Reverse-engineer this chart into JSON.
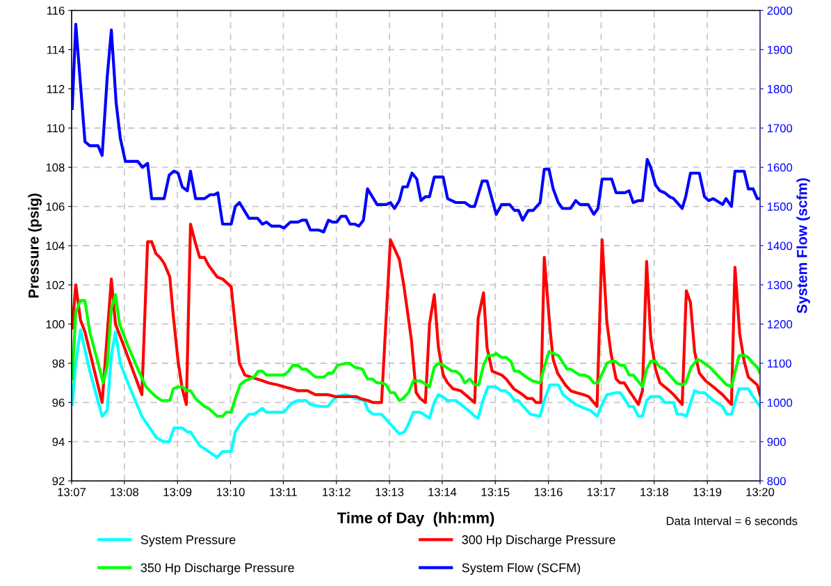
{
  "chart_data": {
    "type": "line",
    "xlabel": "Time of Day  (hh:mm)",
    "ylabel": "Pressure (psig)",
    "y2label": "System Flow (scfm)",
    "xlim": [
      13.1167,
      13.3333
    ],
    "xticks": [
      {
        "value": 13.1167,
        "label": "13:07"
      },
      {
        "value": 13.1333,
        "label": "13:08"
      },
      {
        "value": 13.15,
        "label": "13:09"
      },
      {
        "value": 13.1667,
        "label": "13:10"
      },
      {
        "value": 13.1833,
        "label": "13:11"
      },
      {
        "value": 13.2,
        "label": "13:12"
      },
      {
        "value": 13.2167,
        "label": "13:13"
      },
      {
        "value": 13.2333,
        "label": "13:14"
      },
      {
        "value": 13.25,
        "label": "13:15"
      },
      {
        "value": 13.2667,
        "label": "13:16"
      },
      {
        "value": 13.2833,
        "label": "13:17"
      },
      {
        "value": 13.3,
        "label": "13:18"
      },
      {
        "value": 13.3167,
        "label": "13:19"
      },
      {
        "value": 13.3333,
        "label": "13:20"
      }
    ],
    "ylim": [
      92,
      116
    ],
    "yticks": [
      92,
      94,
      96,
      98,
      100,
      102,
      104,
      106,
      108,
      110,
      112,
      114,
      116
    ],
    "y2lim": [
      800,
      2000
    ],
    "y2ticks": [
      800,
      900,
      1000,
      1100,
      1200,
      1300,
      1400,
      1500,
      1600,
      1700,
      1800,
      1900,
      2000
    ],
    "grid": true,
    "legend": "bottom",
    "marker": "none",
    "line_style": "solid",
    "annotations": [
      "Data Interval = 6 seconds"
    ],
    "series": [
      {
        "name": "System Pressure",
        "color": "#00ffff",
        "x": [
          13.1169,
          13.118,
          13.1195,
          13.1224,
          13.1263,
          13.1279,
          13.1292,
          13.1305,
          13.132,
          13.1349,
          13.1388,
          13.1434,
          13.1456,
          13.1474,
          13.1489,
          13.1515,
          13.1531,
          13.1541,
          13.157,
          13.1598,
          13.1625,
          13.1642,
          13.1669,
          13.1682,
          13.1697,
          13.1725,
          13.1741,
          13.1767,
          13.178,
          13.1822,
          13.1835,
          13.185,
          13.1863,
          13.1879,
          13.1905,
          13.1918,
          13.1949,
          13.1973,
          13.1988,
          13.2001,
          13.203,
          13.2063,
          13.2087,
          13.21,
          13.2115,
          13.2142,
          13.217,
          13.2198,
          13.2214,
          13.2227,
          13.2242,
          13.2264,
          13.2293,
          13.2308,
          13.2321,
          13.2334,
          13.235,
          13.2376,
          13.2391,
          13.2415,
          13.2435,
          13.2446,
          13.2461,
          13.2477,
          13.2501,
          13.2518,
          13.2531,
          13.2547,
          13.256,
          13.2573,
          13.2588,
          13.261,
          13.2641,
          13.2654,
          13.2672,
          13.2698,
          13.2713,
          13.2737,
          13.2753,
          13.2781,
          13.2799,
          13.282,
          13.2836,
          13.2851,
          13.288,
          13.2893,
          13.2906,
          13.2921,
          13.2934,
          13.295,
          13.2963,
          13.2976,
          13.2989,
          13.3018,
          13.3033,
          13.3061,
          13.3072,
          13.3088,
          13.3101,
          13.3127,
          13.3142,
          13.3158,
          13.3186,
          13.3215,
          13.3228,
          13.3243,
          13.3267,
          13.3296,
          13.3311,
          13.3333
        ],
        "values": [
          95.9,
          98.0,
          99.7,
          97.6,
          95.3,
          95.6,
          98.4,
          99.6,
          98.0,
          96.8,
          95.3,
          94.2,
          94.0,
          94.0,
          94.7,
          94.7,
          94.5,
          94.5,
          93.8,
          93.5,
          93.2,
          93.5,
          93.5,
          94.5,
          94.9,
          95.4,
          95.4,
          95.7,
          95.5,
          95.5,
          95.5,
          95.8,
          96.0,
          96.1,
          96.1,
          95.9,
          95.8,
          95.8,
          96.1,
          96.3,
          96.4,
          96.2,
          96.1,
          95.6,
          95.4,
          95.4,
          94.9,
          94.4,
          94.5,
          94.9,
          95.5,
          95.5,
          95.2,
          96.0,
          96.4,
          96.3,
          96.1,
          96.1,
          95.9,
          95.6,
          95.3,
          95.2,
          96.1,
          96.8,
          96.8,
          96.6,
          96.6,
          96.4,
          96.1,
          96.1,
          95.8,
          95.4,
          95.3,
          96.1,
          96.9,
          96.9,
          96.4,
          96.1,
          95.9,
          95.7,
          95.6,
          95.3,
          95.9,
          96.4,
          96.5,
          96.5,
          96.2,
          95.8,
          95.8,
          95.3,
          95.3,
          96.1,
          96.3,
          96.3,
          96.0,
          96.0,
          95.4,
          95.4,
          95.3,
          96.6,
          96.5,
          96.5,
          96.1,
          95.8,
          95.4,
          95.4,
          96.7,
          96.7,
          96.3,
          95.8
        ]
      },
      {
        "name": "300 Hp Discharge Pressure",
        "color": "#ff0000",
        "x": [
          13.1169,
          13.118,
          13.1195,
          13.1209,
          13.1263,
          13.1292,
          13.1305,
          13.1331,
          13.1388,
          13.1406,
          13.1419,
          13.1432,
          13.1445,
          13.1458,
          13.1476,
          13.1487,
          13.1502,
          13.1515,
          13.1528,
          13.1541,
          13.1557,
          13.157,
          13.1585,
          13.1598,
          13.1625,
          13.1642,
          13.1669,
          13.1682,
          13.1695,
          13.1712,
          13.173,
          13.175,
          13.1769,
          13.1787,
          13.1815,
          13.1835,
          13.1859,
          13.1879,
          13.1909,
          13.1934,
          13.1973,
          13.1997,
          13.2063,
          13.2076,
          13.21,
          13.2115,
          13.2142,
          13.217,
          13.2198,
          13.2212,
          13.2236,
          13.2251,
          13.2264,
          13.228,
          13.2293,
          13.2308,
          13.2321,
          13.2336,
          13.235,
          13.2367,
          13.2391,
          13.2435,
          13.2446,
          13.2463,
          13.2474,
          13.249,
          13.2505,
          13.252,
          13.2534,
          13.2558,
          13.2586,
          13.2601,
          13.2617,
          13.2628,
          13.2643,
          13.2654,
          13.2661,
          13.2672,
          13.2682,
          13.2696,
          13.272,
          13.2737,
          13.2755,
          13.2777,
          13.2794,
          13.282,
          13.2836,
          13.2851,
          13.2864,
          13.288,
          13.2893,
          13.2906,
          13.2921,
          13.2934,
          13.295,
          13.2963,
          13.2976,
          13.2989,
          13.3004,
          13.3018,
          13.3033,
          13.3048,
          13.3061,
          13.3088,
          13.3101,
          13.3114,
          13.3127,
          13.3142,
          13.3162,
          13.3186,
          13.3215,
          13.3243,
          13.3254,
          13.3269,
          13.3283,
          13.3296,
          13.3324,
          13.3333
        ],
        "values": [
          99.8,
          102.0,
          100.2,
          99.6,
          96.0,
          102.3,
          100.0,
          98.9,
          96.4,
          104.2,
          104.2,
          103.6,
          103.4,
          103.1,
          102.4,
          100.4,
          98.1,
          96.7,
          95.9,
          105.1,
          104.1,
          103.4,
          103.4,
          103.0,
          102.4,
          102.3,
          101.9,
          99.9,
          98.0,
          97.4,
          97.3,
          97.2,
          97.1,
          97.0,
          96.9,
          96.8,
          96.7,
          96.6,
          96.6,
          96.4,
          96.4,
          96.3,
          96.3,
          96.2,
          96.1,
          96.0,
          96.0,
          104.3,
          103.3,
          102.0,
          99.2,
          96.5,
          96.2,
          96.0,
          100.0,
          101.5,
          98.8,
          97.4,
          97.0,
          96.7,
          96.6,
          96.0,
          100.3,
          101.6,
          98.8,
          97.6,
          97.5,
          97.4,
          97.2,
          96.7,
          96.4,
          96.2,
          96.2,
          96.0,
          96.0,
          103.4,
          102.0,
          99.8,
          98.2,
          97.5,
          96.9,
          96.6,
          96.5,
          96.4,
          96.3,
          95.8,
          104.3,
          100.1,
          98.5,
          97.2,
          97.0,
          97.0,
          96.6,
          96.3,
          95.9,
          96.6,
          103.2,
          99.3,
          97.7,
          97.0,
          96.8,
          96.6,
          96.4,
          95.9,
          101.7,
          101.1,
          98.6,
          97.5,
          97.1,
          96.8,
          96.4,
          95.9,
          102.9,
          99.5,
          98.1,
          97.3,
          96.9,
          96.4
        ]
      },
      {
        "name": "350 Hp Discharge Pressure",
        "color": "#00ff00",
        "x": [
          13.1169,
          13.118,
          13.1195,
          13.1209,
          13.1224,
          13.1252,
          13.1266,
          13.1279,
          13.1292,
          13.1305,
          13.1318,
          13.1344,
          13.1373,
          13.1401,
          13.1419,
          13.1432,
          13.145,
          13.1476,
          13.1487,
          13.1502,
          13.1515,
          13.1531,
          13.1541,
          13.1557,
          13.1585,
          13.1598,
          13.1625,
          13.1642,
          13.1653,
          13.1669,
          13.1682,
          13.1697,
          13.1712,
          13.1741,
          13.1754,
          13.1767,
          13.178,
          13.1822,
          13.1835,
          13.185,
          13.1863,
          13.1879,
          13.1892,
          13.1905,
          13.1934,
          13.1962,
          13.1975,
          13.1988,
          13.2004,
          13.203,
          13.2041,
          13.2058,
          13.2082,
          13.2098,
          13.2113,
          13.2128,
          13.2144,
          13.2157,
          13.217,
          13.2183,
          13.2198,
          13.2209,
          13.2227,
          13.2242,
          13.2264,
          13.2293,
          13.2308,
          13.2321,
          13.2336,
          13.2363,
          13.2376,
          13.2391,
          13.2404,
          13.242,
          13.2435,
          13.2448,
          13.2463,
          13.2477,
          13.2492,
          13.2503,
          13.252,
          13.2534,
          13.2549,
          13.256,
          13.2573,
          13.2597,
          13.2617,
          13.2641,
          13.2654,
          13.2669,
          13.2698,
          13.2726,
          13.2737,
          13.2766,
          13.2781,
          13.2794,
          13.281,
          13.2823,
          13.2851,
          13.2864,
          13.2877,
          13.2893,
          13.2906,
          13.2921,
          13.2934,
          13.2963,
          13.2976,
          13.2989,
          13.3004,
          13.3018,
          13.3033,
          13.3048,
          13.307,
          13.3088,
          13.3099,
          13.3116,
          13.3136,
          13.3149,
          13.3175,
          13.3204,
          13.3228,
          13.3243,
          13.3267,
          13.3283,
          13.3296,
          13.3311,
          13.3324,
          13.3333
        ],
        "values": [
          97.2,
          100.6,
          101.2,
          101.2,
          99.6,
          97.9,
          97.0,
          97.9,
          100.8,
          101.5,
          100.0,
          98.9,
          97.8,
          96.8,
          96.5,
          96.3,
          96.1,
          96.1,
          96.7,
          96.8,
          96.8,
          96.6,
          96.6,
          96.2,
          95.8,
          95.7,
          95.3,
          95.3,
          95.5,
          95.5,
          96.2,
          96.9,
          97.1,
          97.3,
          97.6,
          97.6,
          97.4,
          97.4,
          97.4,
          97.6,
          97.9,
          97.9,
          97.7,
          97.7,
          97.3,
          97.3,
          97.5,
          97.5,
          97.9,
          98.0,
          98.0,
          97.8,
          97.7,
          97.2,
          97.2,
          97.0,
          97.0,
          96.9,
          96.5,
          96.5,
          96.1,
          96.2,
          96.5,
          97.1,
          97.1,
          96.8,
          97.8,
          98.0,
          97.9,
          97.6,
          97.6,
          97.4,
          97.0,
          97.2,
          96.9,
          96.9,
          97.9,
          98.4,
          98.4,
          98.5,
          98.3,
          98.3,
          98.1,
          97.6,
          97.6,
          97.3,
          97.1,
          97.0,
          97.8,
          98.6,
          98.4,
          97.7,
          97.7,
          97.4,
          97.4,
          97.3,
          97.0,
          97.0,
          98.0,
          98.1,
          98.1,
          97.9,
          97.9,
          97.4,
          97.4,
          96.8,
          97.7,
          98.1,
          98.1,
          97.8,
          97.7,
          97.4,
          97.0,
          96.9,
          97.0,
          97.8,
          98.2,
          98.1,
          97.8,
          97.3,
          96.9,
          96.8,
          98.4,
          98.4,
          98.3,
          98.0,
          97.8,
          97.5
        ]
      },
      {
        "name": "System Flow (SCFM)",
        "color": "#0000ff",
        "axis": "y2",
        "x": [
          13.1169,
          13.118,
          13.1209,
          13.1224,
          13.125,
          13.1263,
          13.1279,
          13.1292,
          13.1307,
          13.132,
          13.1336,
          13.1375,
          13.139,
          13.1406,
          13.1419,
          13.1458,
          13.1474,
          13.1489,
          13.1502,
          13.1515,
          13.1531,
          13.1541,
          13.1557,
          13.1585,
          13.1603,
          13.1616,
          13.1627,
          13.1642,
          13.1669,
          13.1682,
          13.1695,
          13.1725,
          13.1752,
          13.1767,
          13.178,
          13.1796,
          13.1822,
          13.1835,
          13.1855,
          13.1879,
          13.1892,
          13.1905,
          13.1918,
          13.1944,
          13.196,
          13.1975,
          13.1988,
          13.2001,
          13.2015,
          13.203,
          13.2043,
          13.2058,
          13.2071,
          13.2085,
          13.2098,
          13.2113,
          13.2128,
          13.2157,
          13.217,
          13.2183,
          13.2198,
          13.2209,
          13.2223,
          13.2238,
          13.2253,
          13.2266,
          13.228,
          13.2293,
          13.2308,
          13.2336,
          13.235,
          13.2376,
          13.2404,
          13.2422,
          13.2435,
          13.2459,
          13.2474,
          13.2503,
          13.252,
          13.2545,
          13.256,
          13.2573,
          13.2586,
          13.2604,
          13.2619,
          13.2641,
          13.2654,
          13.2669,
          13.2682,
          13.2698,
          13.2711,
          13.2737,
          13.2753,
          13.2766,
          13.2792,
          13.281,
          13.2823,
          13.2836,
          13.2866,
          13.288,
          13.2908,
          13.2921,
          13.2934,
          13.295,
          13.2963,
          13.2978,
          13.2989,
          13.3004,
          13.3018,
          13.3033,
          13.3048,
          13.3061,
          13.3088,
          13.3099,
          13.3114,
          13.3142,
          13.3158,
          13.3171,
          13.3186,
          13.3215,
          13.3226,
          13.3243,
          13.3254,
          13.3283,
          13.3296,
          13.3311,
          13.3324,
          13.3333
        ],
        "values": [
          1750,
          1965,
          1665,
          1655,
          1655,
          1630,
          1830,
          1950,
          1765,
          1675,
          1615,
          1615,
          1600,
          1610,
          1520,
          1520,
          1580,
          1590,
          1585,
          1550,
          1540,
          1590,
          1520,
          1520,
          1530,
          1530,
          1535,
          1455,
          1455,
          1500,
          1510,
          1470,
          1470,
          1455,
          1460,
          1450,
          1450,
          1445,
          1460,
          1460,
          1465,
          1465,
          1440,
          1440,
          1435,
          1465,
          1460,
          1460,
          1475,
          1475,
          1455,
          1455,
          1450,
          1465,
          1545,
          1525,
          1505,
          1505,
          1510,
          1495,
          1515,
          1550,
          1550,
          1585,
          1570,
          1515,
          1525,
          1525,
          1575,
          1575,
          1520,
          1510,
          1510,
          1500,
          1500,
          1565,
          1565,
          1480,
          1505,
          1505,
          1490,
          1490,
          1465,
          1490,
          1490,
          1510,
          1595,
          1595,
          1545,
          1510,
          1495,
          1495,
          1515,
          1505,
          1505,
          1480,
          1495,
          1570,
          1570,
          1535,
          1535,
          1540,
          1510,
          1515,
          1515,
          1620,
          1600,
          1555,
          1540,
          1535,
          1525,
          1520,
          1495,
          1525,
          1585,
          1585,
          1525,
          1515,
          1520,
          1505,
          1520,
          1500,
          1590,
          1590,
          1545,
          1545,
          1520,
          1520
        ]
      }
    ]
  }
}
